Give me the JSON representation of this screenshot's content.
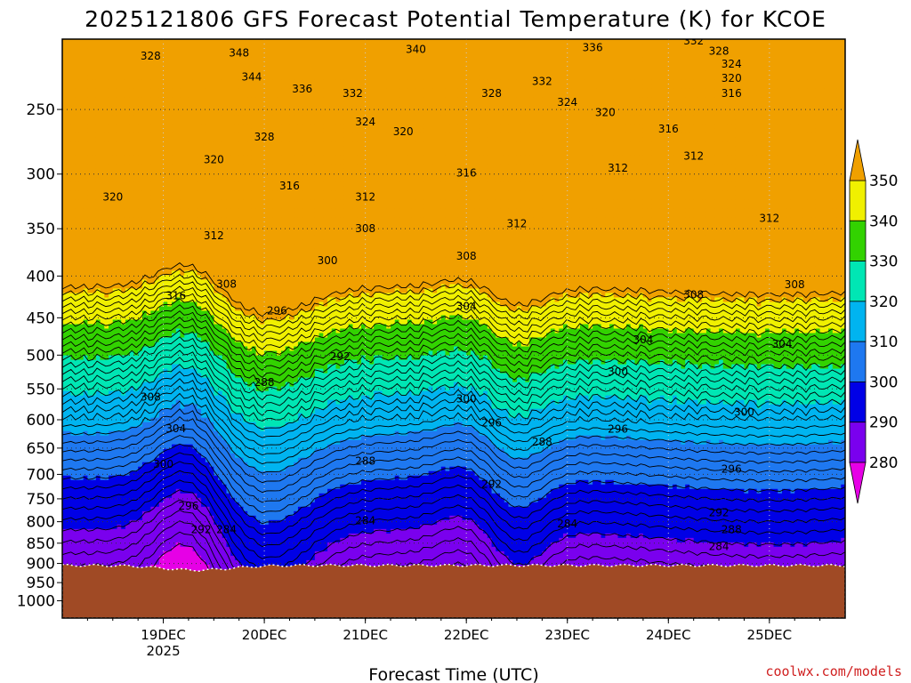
{
  "chart_data": {
    "type": "contour",
    "title": "2025121806 GFS Forecast Potential Temperature (K) for KCOE",
    "xlabel": "Forecast Time (UTC)",
    "y_ticks": [
      {
        "v": 250,
        "label": "250"
      },
      {
        "v": 300,
        "label": "300"
      },
      {
        "v": 350,
        "label": "350"
      },
      {
        "v": 400,
        "label": "400"
      },
      {
        "v": 450,
        "label": "450"
      },
      {
        "v": 500,
        "label": "500"
      },
      {
        "v": 550,
        "label": "550"
      },
      {
        "v": 600,
        "label": "600"
      },
      {
        "v": 650,
        "label": "650"
      },
      {
        "v": 700,
        "label": "700"
      },
      {
        "v": 750,
        "label": "750"
      },
      {
        "v": 800,
        "label": "800"
      },
      {
        "v": 850,
        "label": "850"
      },
      {
        "v": 900,
        "label": "900"
      },
      {
        "v": 950,
        "label": "950"
      },
      {
        "v": 1000,
        "label": "1000"
      }
    ],
    "x_ticks": [
      {
        "t": 18,
        "label": "19DEC",
        "sub": "2025"
      },
      {
        "t": 42,
        "label": "20DEC",
        "sub": ""
      },
      {
        "t": 66,
        "label": "21DEC",
        "sub": ""
      },
      {
        "t": 90,
        "label": "22DEC",
        "sub": ""
      },
      {
        "t": 114,
        "label": "23DEC",
        "sub": ""
      },
      {
        "t": 138,
        "label": "24DEC",
        "sub": ""
      },
      {
        "t": 162,
        "label": "25DEC",
        "sub": ""
      }
    ],
    "grid": "dotted",
    "colorbar": {
      "position": "right",
      "bins": [
        {
          "lo": 280,
          "hi": 290,
          "color": "#7a00ee"
        },
        {
          "lo": 290,
          "hi": 300,
          "color": "#0000e6"
        },
        {
          "lo": 300,
          "hi": 310,
          "color": "#1e78f0"
        },
        {
          "lo": 310,
          "hi": 320,
          "color": "#00b4f0"
        },
        {
          "lo": 320,
          "hi": 330,
          "color": "#00e6b4"
        },
        {
          "lo": 330,
          "hi": 340,
          "color": "#32d200"
        },
        {
          "lo": 340,
          "hi": 350,
          "color": "#f0f000"
        }
      ],
      "under_color": "#e600e6",
      "over_color": "#f0a000",
      "tick_labels": [
        "280",
        "290",
        "300",
        "310",
        "320",
        "330",
        "340",
        "350"
      ]
    },
    "ground_color": "#a04a25",
    "isotherm_levels": [
      {
        "t": 12,
        "p": 905,
        "theta": 280
      },
      {
        "t": 18,
        "p": 895,
        "theta": 280
      },
      {
        "t": 30,
        "p": 885,
        "theta": 280
      },
      {
        "t": 48,
        "p": 880,
        "theta": 282
      },
      {
        "t": 66,
        "p": 880,
        "theta": 282
      },
      {
        "t": 90,
        "p": 885,
        "theta": 282
      },
      {
        "t": 114,
        "p": 885,
        "theta": 282
      },
      {
        "t": 138,
        "p": 880,
        "theta": 282
      },
      {
        "t": 162,
        "p": 875,
        "theta": 282
      },
      {
        "t": 180,
        "p": 875,
        "theta": 282
      }
    ],
    "contour_labels": [
      {
        "text": "328",
        "t": 15,
        "p": 215
      },
      {
        "text": "348",
        "t": 36,
        "p": 213
      },
      {
        "text": "344",
        "t": 39,
        "p": 228
      },
      {
        "text": "336",
        "t": 51,
        "p": 236
      },
      {
        "text": "340",
        "t": 78,
        "p": 211
      },
      {
        "text": "332",
        "t": 63,
        "p": 239
      },
      {
        "text": "324",
        "t": 66,
        "p": 259
      },
      {
        "text": "328",
        "t": 42,
        "p": 270
      },
      {
        "text": "320",
        "t": 75,
        "p": 266
      },
      {
        "text": "328",
        "t": 96,
        "p": 239
      },
      {
        "text": "332",
        "t": 108,
        "p": 231
      },
      {
        "text": "324",
        "t": 114,
        "p": 245
      },
      {
        "text": "336",
        "t": 120,
        "p": 210
      },
      {
        "text": "320",
        "t": 123,
        "p": 252
      },
      {
        "text": "332",
        "t": 144,
        "p": 206
      },
      {
        "text": "328",
        "t": 150,
        "p": 212
      },
      {
        "text": "324",
        "t": 153,
        "p": 220
      },
      {
        "text": "320",
        "t": 153,
        "p": 229
      },
      {
        "text": "316",
        "t": 153,
        "p": 239
      },
      {
        "text": "316",
        "t": 138,
        "p": 264
      },
      {
        "text": "320",
        "t": 30,
        "p": 288
      },
      {
        "text": "320",
        "t": 6,
        "p": 320
      },
      {
        "text": "316",
        "t": 48,
        "p": 310
      },
      {
        "text": "312",
        "t": 66,
        "p": 320
      },
      {
        "text": "316",
        "t": 90,
        "p": 299
      },
      {
        "text": "312",
        "t": 126,
        "p": 295
      },
      {
        "text": "312",
        "t": 144,
        "p": 285
      },
      {
        "text": "312",
        "t": 102,
        "p": 345
      },
      {
        "text": "312",
        "t": 162,
        "p": 340
      },
      {
        "text": "312",
        "t": 30,
        "p": 357
      },
      {
        "text": "308",
        "t": 66,
        "p": 350
      },
      {
        "text": "308",
        "t": 90,
        "p": 378
      },
      {
        "text": "300",
        "t": 57,
        "p": 383
      },
      {
        "text": "308",
        "t": 33,
        "p": 409
      },
      {
        "text": "316",
        "t": 21,
        "p": 423
      },
      {
        "text": "296",
        "t": 45,
        "p": 441
      },
      {
        "text": "304",
        "t": 90,
        "p": 436
      },
      {
        "text": "308",
        "t": 144,
        "p": 422
      },
      {
        "text": "308",
        "t": 168,
        "p": 410
      },
      {
        "text": "304",
        "t": 132,
        "p": 479
      },
      {
        "text": "304",
        "t": 165,
        "p": 485
      },
      {
        "text": "292",
        "t": 60,
        "p": 502
      },
      {
        "text": "300",
        "t": 126,
        "p": 524
      },
      {
        "text": "308",
        "t": 15,
        "p": 563
      },
      {
        "text": "300",
        "t": 90,
        "p": 566
      },
      {
        "text": "300",
        "t": 156,
        "p": 587
      },
      {
        "text": "288",
        "t": 42,
        "p": 540
      },
      {
        "text": "296",
        "t": 96,
        "p": 605
      },
      {
        "text": "296",
        "t": 126,
        "p": 616
      },
      {
        "text": "304",
        "t": 21,
        "p": 615
      },
      {
        "text": "288",
        "t": 108,
        "p": 639
      },
      {
        "text": "288",
        "t": 66,
        "p": 674
      },
      {
        "text": "300",
        "t": 18,
        "p": 680
      },
      {
        "text": "296",
        "t": 153,
        "p": 690
      },
      {
        "text": "292",
        "t": 96,
        "p": 720
      },
      {
        "text": "296",
        "t": 24,
        "p": 765
      },
      {
        "text": "292",
        "t": 150,
        "p": 780
      },
      {
        "text": "292",
        "t": 27,
        "p": 818
      },
      {
        "text": "284",
        "t": 33,
        "p": 818
      },
      {
        "text": "284",
        "t": 66,
        "p": 798
      },
      {
        "text": "284",
        "t": 114,
        "p": 805
      },
      {
        "text": "288",
        "t": 153,
        "p": 818
      },
      {
        "text": "284",
        "t": 150,
        "p": 858
      }
    ]
  },
  "credit": "coolwx.com/models"
}
